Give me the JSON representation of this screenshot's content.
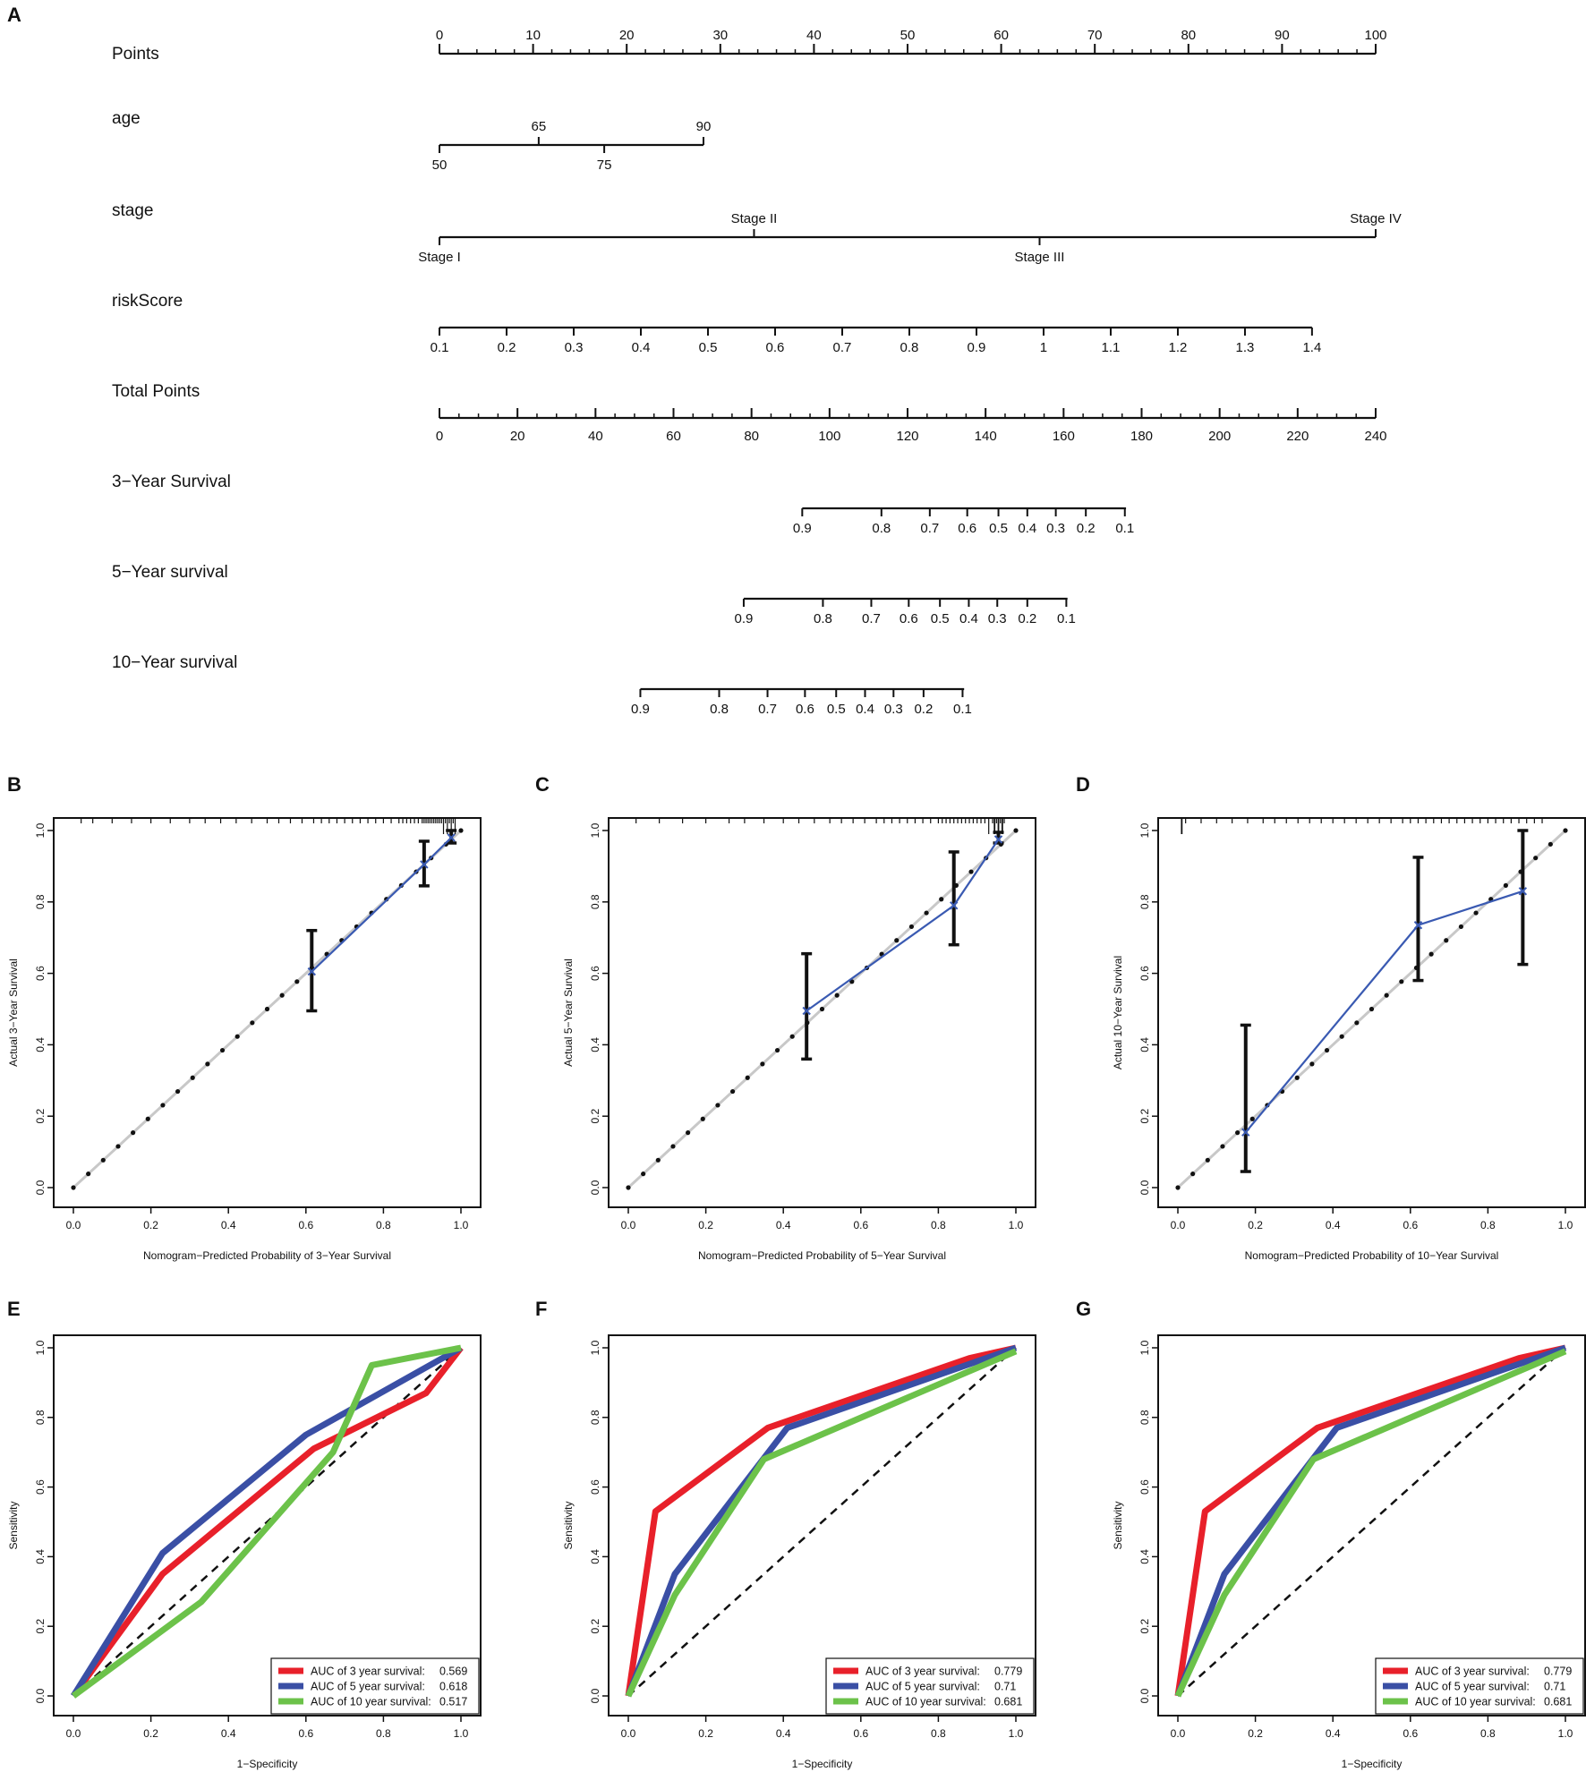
{
  "panel_letters": [
    "A",
    "B",
    "C",
    "D",
    "E",
    "F",
    "G"
  ],
  "colors": {
    "roc_3yr": "#e8202a",
    "roc_5yr": "#3a4fa5",
    "roc_10yr": "#6cc24a",
    "calibration_line": "#3a5ab2",
    "ideal_line": "#c8c8c8"
  },
  "chart_data": [
    {
      "id": "A",
      "type": "nomogram",
      "points_scale": [
        0,
        100
      ],
      "rows": [
        {
          "label": "Points",
          "kind": "points",
          "ticks": [
            {
              "pts": 0,
              "label": "0"
            },
            {
              "pts": 10,
              "label": "10"
            },
            {
              "pts": 20,
              "label": "20"
            },
            {
              "pts": 30,
              "label": "30"
            },
            {
              "pts": 40,
              "label": "40"
            },
            {
              "pts": 50,
              "label": "50"
            },
            {
              "pts": 60,
              "label": "60"
            },
            {
              "pts": 70,
              "label": "70"
            },
            {
              "pts": 80,
              "label": "80"
            },
            {
              "pts": 90,
              "label": "90"
            },
            {
              "pts": 100,
              "label": "100"
            }
          ],
          "minor_step": 2
        },
        {
          "label": "age",
          "kind": "variable",
          "range_pts": [
            0,
            28.2
          ],
          "ticks": [
            {
              "pts": 0,
              "label": "50",
              "pos": "below"
            },
            {
              "pts": 10.6,
              "label": "65",
              "pos": "above"
            },
            {
              "pts": 17.6,
              "label": "75",
              "pos": "below"
            },
            {
              "pts": 28.2,
              "label": "90",
              "pos": "above"
            }
          ]
        },
        {
          "label": "stage",
          "kind": "variable",
          "range_pts": [
            0,
            100
          ],
          "ticks": [
            {
              "pts": 0,
              "label": "Stage I",
              "pos": "below"
            },
            {
              "pts": 33.6,
              "label": "Stage II",
              "pos": "above"
            },
            {
              "pts": 64.1,
              "label": "Stage III",
              "pos": "below"
            },
            {
              "pts": 100,
              "label": "Stage IV",
              "pos": "above"
            }
          ]
        },
        {
          "label": "riskScore",
          "kind": "variable",
          "range_pts": [
            0,
            93.2
          ],
          "ticks": [
            {
              "pts": 0,
              "label": "0.1"
            },
            {
              "pts": 7.17,
              "label": "0.2"
            },
            {
              "pts": 14.34,
              "label": "0.3"
            },
            {
              "pts": 21.51,
              "label": "0.4"
            },
            {
              "pts": 28.68,
              "label": "0.5"
            },
            {
              "pts": 35.85,
              "label": "0.6"
            },
            {
              "pts": 43.02,
              "label": "0.7"
            },
            {
              "pts": 50.19,
              "label": "0.8"
            },
            {
              "pts": 57.36,
              "label": "0.9"
            },
            {
              "pts": 64.53,
              "label": "1"
            },
            {
              "pts": 71.7,
              "label": "1.1"
            },
            {
              "pts": 78.87,
              "label": "1.2"
            },
            {
              "pts": 86.04,
              "label": "1.3"
            },
            {
              "pts": 93.2,
              "label": "1.4"
            }
          ]
        },
        {
          "label": "Total Points",
          "kind": "total",
          "total_range": [
            0,
            240
          ],
          "ticks": [
            {
              "total": 0,
              "label": "0"
            },
            {
              "total": 20,
              "label": "20"
            },
            {
              "total": 40,
              "label": "40"
            },
            {
              "total": 60,
              "label": "60"
            },
            {
              "total": 80,
              "label": "80"
            },
            {
              "total": 100,
              "label": "100"
            },
            {
              "total": 120,
              "label": "120"
            },
            {
              "total": 140,
              "label": "140"
            },
            {
              "total": 160,
              "label": "160"
            },
            {
              "total": 180,
              "label": "180"
            },
            {
              "total": 200,
              "label": "200"
            },
            {
              "total": 220,
              "label": "220"
            },
            {
              "total": 240,
              "label": "240"
            }
          ],
          "minor_step": 5
        },
        {
          "label": "3−Year Survival",
          "kind": "survival",
          "range_total": [
            93,
            176
          ],
          "ticks": [
            {
              "total": 93,
              "label": "0.9"
            },
            {
              "total": 113.3,
              "label": "0.8"
            },
            {
              "total": 125.7,
              "label": "0.7"
            },
            {
              "total": 135.3,
              "label": "0.6"
            },
            {
              "total": 143.3,
              "label": "0.5"
            },
            {
              "total": 150.7,
              "label": "0.4"
            },
            {
              "total": 158,
              "label": "0.3"
            },
            {
              "total": 165.7,
              "label": "0.2"
            },
            {
              "total": 175.7,
              "label": "0.1"
            }
          ]
        },
        {
          "label": "5−Year survival",
          "kind": "survival",
          "range_total": [
            78,
            161
          ],
          "ticks": [
            {
              "total": 78,
              "label": "0.9"
            },
            {
              "total": 98.3,
              "label": "0.8"
            },
            {
              "total": 110.7,
              "label": "0.7"
            },
            {
              "total": 120.3,
              "label": "0.6"
            },
            {
              "total": 128.3,
              "label": "0.5"
            },
            {
              "total": 135.7,
              "label": "0.4"
            },
            {
              "total": 143,
              "label": "0.3"
            },
            {
              "total": 150.7,
              "label": "0.2"
            },
            {
              "total": 160.7,
              "label": "0.1"
            }
          ]
        },
        {
          "label": "10−Year survival",
          "kind": "survival",
          "range_total": [
            51.5,
            134.5
          ],
          "ticks": [
            {
              "total": 51.5,
              "label": "0.9"
            },
            {
              "total": 71.7,
              "label": "0.8"
            },
            {
              "total": 84.1,
              "label": "0.7"
            },
            {
              "total": 93.7,
              "label": "0.6"
            },
            {
              "total": 101.7,
              "label": "0.5"
            },
            {
              "total": 109.1,
              "label": "0.4"
            },
            {
              "total": 116.4,
              "label": "0.3"
            },
            {
              "total": 124.1,
              "label": "0.2"
            },
            {
              "total": 134.1,
              "label": "0.1"
            }
          ]
        }
      ]
    },
    {
      "id": "B",
      "type": "calibration",
      "xlabel": "Nomogram−Predicted Probability of 3−Year Survival",
      "ylabel": "Actual 3−Year Survival",
      "xlim": [
        0,
        1
      ],
      "ylim": [
        0,
        1
      ],
      "xticks": [
        "0.0",
        "0.2",
        "0.4",
        "0.6",
        "0.8",
        "1.0"
      ],
      "yticks": [
        "0.0",
        "0.2",
        "0.4",
        "0.6",
        "0.8",
        "1.0"
      ],
      "points": [
        {
          "x": 0.615,
          "y": 0.605,
          "lo": 0.495,
          "hi": 0.72
        },
        {
          "x": 0.905,
          "y": 0.905,
          "lo": 0.845,
          "hi": 0.97
        },
        {
          "x": 0.975,
          "y": 0.98,
          "lo": 0.965,
          "hi": 1.0
        }
      ],
      "rug": [
        0.02,
        0.05,
        0.1,
        0.15,
        0.2,
        0.25,
        0.3,
        0.34,
        0.38,
        0.42,
        0.46,
        0.5,
        0.53,
        0.56,
        0.59,
        0.62,
        0.64,
        0.66,
        0.68,
        0.7,
        0.72,
        0.74,
        0.76,
        0.78,
        0.8,
        0.82,
        0.84,
        0.85,
        0.86,
        0.87,
        0.88,
        0.89,
        0.9,
        0.905,
        0.91,
        0.915,
        0.92,
        0.925,
        0.93,
        0.935,
        0.94,
        0.945,
        0.95,
        0.955,
        0.96,
        0.965,
        0.97,
        0.975,
        0.98,
        0.985
      ],
      "rug_tall": [
        0.955,
        0.965,
        0.975,
        0.985
      ]
    },
    {
      "id": "C",
      "type": "calibration",
      "xlabel": "Nomogram−Predicted Probability of 5−Year Survival",
      "ylabel": "Actual 5−Year Survival",
      "xlim": [
        0,
        1
      ],
      "ylim": [
        0,
        1
      ],
      "xticks": [
        "0.0",
        "0.2",
        "0.4",
        "0.6",
        "0.8",
        "1.0"
      ],
      "yticks": [
        "0.0",
        "0.2",
        "0.4",
        "0.6",
        "0.8",
        "1.0"
      ],
      "points": [
        {
          "x": 0.46,
          "y": 0.495,
          "lo": 0.36,
          "hi": 0.655
        },
        {
          "x": 0.84,
          "y": 0.79,
          "lo": 0.68,
          "hi": 0.94
        },
        {
          "x": 0.955,
          "y": 0.975,
          "lo": 0.965,
          "hi": 0.995
        }
      ],
      "rug": [
        0.02,
        0.08,
        0.14,
        0.2,
        0.26,
        0.3,
        0.35,
        0.4,
        0.44,
        0.48,
        0.52,
        0.55,
        0.58,
        0.61,
        0.64,
        0.66,
        0.68,
        0.7,
        0.72,
        0.74,
        0.76,
        0.78,
        0.8,
        0.81,
        0.82,
        0.83,
        0.84,
        0.85,
        0.86,
        0.87,
        0.88,
        0.89,
        0.9,
        0.91,
        0.92,
        0.93,
        0.94,
        0.95,
        0.96,
        0.97
      ],
      "rug_tall": [
        0.93,
        0.945,
        0.955,
        0.965
      ]
    },
    {
      "id": "D",
      "type": "calibration",
      "xlabel": "Nomogram−Predicted Probability of 10−Year Survival",
      "ylabel": "Actual 10−Year Survival",
      "xlim": [
        0,
        1
      ],
      "ylim": [
        0,
        1
      ],
      "xticks": [
        "0.0",
        "0.2",
        "0.4",
        "0.6",
        "0.8",
        "1.0"
      ],
      "yticks": [
        "0.0",
        "0.2",
        "0.4",
        "0.6",
        "0.8",
        "1.0"
      ],
      "points": [
        {
          "x": 0.175,
          "y": 0.155,
          "lo": 0.045,
          "hi": 0.455
        },
        {
          "x": 0.62,
          "y": 0.735,
          "lo": 0.58,
          "hi": 0.925
        },
        {
          "x": 0.89,
          "y": 0.83,
          "lo": 0.625,
          "hi": 1.0
        }
      ],
      "rug": [
        0.02,
        0.06,
        0.1,
        0.14,
        0.18,
        0.22,
        0.25,
        0.28,
        0.31,
        0.34,
        0.37,
        0.4,
        0.43,
        0.46,
        0.49,
        0.52,
        0.55,
        0.58,
        0.6,
        0.62,
        0.64,
        0.66,
        0.68,
        0.7,
        0.72,
        0.74,
        0.76,
        0.78,
        0.8,
        0.82,
        0.84,
        0.86,
        0.88,
        0.9,
        0.92,
        0.94
      ],
      "rug_tall": [
        0.01
      ]
    },
    {
      "id": "E",
      "type": "roc",
      "xlabel": "1−Specificity",
      "ylabel": "Sensitivity",
      "xlim": [
        0,
        1
      ],
      "ylim": [
        0,
        1
      ],
      "xticks": [
        "0.0",
        "0.2",
        "0.4",
        "0.6",
        "0.8",
        "1.0"
      ],
      "yticks": [
        "0.0",
        "0.2",
        "0.4",
        "0.6",
        "0.8",
        "1.0"
      ],
      "series": [
        {
          "name": "AUC of 3 year survival:",
          "auc": "0.569",
          "color": "#e8202a",
          "points": [
            [
              0,
              0
            ],
            [
              0.23,
              0.35
            ],
            [
              0.62,
              0.71
            ],
            [
              0.91,
              0.87
            ],
            [
              1,
              1
            ]
          ]
        },
        {
          "name": "AUC of 5 year survival:",
          "auc": "0.618",
          "color": "#3a4fa5",
          "points": [
            [
              0,
              0
            ],
            [
              0.23,
              0.41
            ],
            [
              0.6,
              0.75
            ],
            [
              1,
              1
            ]
          ]
        },
        {
          "name": "AUC of 10 year survival:",
          "auc": "0.517",
          "color": "#6cc24a",
          "points": [
            [
              0,
              0
            ],
            [
              0.33,
              0.27
            ],
            [
              0.67,
              0.7
            ],
            [
              0.77,
              0.95
            ],
            [
              1,
              1
            ]
          ]
        }
      ]
    },
    {
      "id": "F",
      "type": "roc",
      "xlabel": "1−Specificity",
      "ylabel": "Sensitivity",
      "xlim": [
        0,
        1
      ],
      "ylim": [
        0,
        1
      ],
      "xticks": [
        "0.0",
        "0.2",
        "0.4",
        "0.6",
        "0.8",
        "1.0"
      ],
      "yticks": [
        "0.0",
        "0.2",
        "0.4",
        "0.6",
        "0.8",
        "1.0"
      ],
      "series": [
        {
          "name": "AUC of 3 year survival:",
          "auc": "0.779",
          "color": "#e8202a",
          "points": [
            [
              0,
              0
            ],
            [
              0.07,
              0.53
            ],
            [
              0.36,
              0.77
            ],
            [
              0.88,
              0.97
            ],
            [
              1,
              1
            ]
          ]
        },
        {
          "name": "AUC of 5 year survival:",
          "auc": "0.71",
          "color": "#3a4fa5",
          "points": [
            [
              0,
              0
            ],
            [
              0.12,
              0.35
            ],
            [
              0.41,
              0.77
            ],
            [
              1,
              1
            ]
          ]
        },
        {
          "name": "AUC of 10 year survival:",
          "auc": "0.681",
          "color": "#6cc24a",
          "points": [
            [
              0,
              0
            ],
            [
              0.12,
              0.29
            ],
            [
              0.35,
              0.68
            ],
            [
              1,
              0.99
            ]
          ]
        }
      ]
    },
    {
      "id": "G",
      "type": "roc",
      "xlabel": "1−Specificity",
      "ylabel": "Sensitivity",
      "xlim": [
        0,
        1
      ],
      "ylim": [
        0,
        1
      ],
      "xticks": [
        "0.0",
        "0.2",
        "0.4",
        "0.6",
        "0.8",
        "1.0"
      ],
      "yticks": [
        "0.0",
        "0.2",
        "0.4",
        "0.6",
        "0.8",
        "1.0"
      ],
      "series": [
        {
          "name": "AUC of 3 year survival:",
          "auc": "0.779",
          "color": "#e8202a",
          "points": [
            [
              0,
              0
            ],
            [
              0.07,
              0.53
            ],
            [
              0.36,
              0.77
            ],
            [
              0.88,
              0.97
            ],
            [
              1,
              1
            ]
          ]
        },
        {
          "name": "AUC of 5 year survival:",
          "auc": "0.71",
          "color": "#3a4fa5",
          "points": [
            [
              0,
              0
            ],
            [
              0.12,
              0.35
            ],
            [
              0.41,
              0.77
            ],
            [
              1,
              1
            ]
          ]
        },
        {
          "name": "AUC of 10 year survival:",
          "auc": "0.681",
          "color": "#6cc24a",
          "points": [
            [
              0,
              0
            ],
            [
              0.12,
              0.29
            ],
            [
              0.35,
              0.68
            ],
            [
              1,
              0.99
            ]
          ]
        }
      ]
    }
  ]
}
